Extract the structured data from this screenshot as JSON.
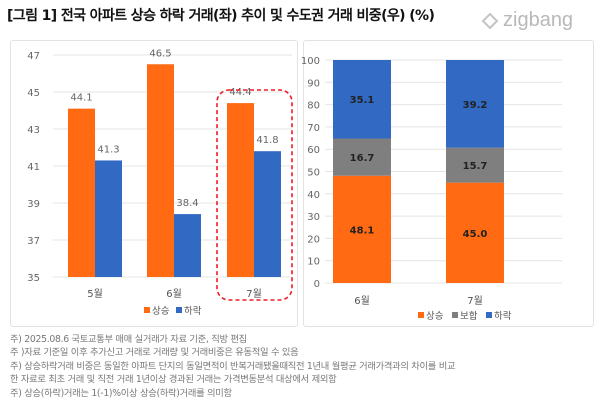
{
  "title": "[그림 1] 전국 아파트 상승 하락 거래(좌) 추이 및 수도권 거래 비중(우) (%)",
  "logo": "zigbang",
  "colors": {
    "up": "#ff6a13",
    "flat": "#7f7f7f",
    "down": "#3169c3",
    "highlight": "#ee1c25"
  },
  "chart_data": [
    {
      "type": "bar",
      "categories": [
        "5월",
        "6월",
        "7월"
      ],
      "series": [
        {
          "name": "상승",
          "values": [
            44.1,
            46.5,
            44.4
          ]
        },
        {
          "name": "하락",
          "values": [
            41.3,
            38.4,
            41.8
          ]
        }
      ],
      "ylim": [
        35,
        47
      ],
      "yticks": [
        35,
        37,
        39,
        41,
        43,
        45,
        47
      ],
      "grid": true,
      "legend": "bottom",
      "highlighted_category": "7월"
    },
    {
      "type": "bar",
      "stacked": true,
      "categories": [
        "6월",
        "7월"
      ],
      "series": [
        {
          "name": "상승",
          "values": [
            48.1,
            45.0
          ]
        },
        {
          "name": "보합",
          "values": [
            16.7,
            15.7
          ]
        },
        {
          "name": "하락",
          "values": [
            35.1,
            39.2
          ]
        }
      ],
      "ylim": [
        0,
        100
      ],
      "yticks": [
        0,
        10,
        20,
        30,
        40,
        50,
        60,
        70,
        80,
        90,
        100
      ],
      "grid": true,
      "legend": "bottom"
    }
  ],
  "notes": [
    "주) 2025.08.6 국토교통부 매매 실거래가 자료 기준, 직방 편집",
    "주 )자료 기준일 이후 추가신고 거래로 거래량 및 거래비중은 유동적일 수 있음",
    "주) 상승하락거래 비중은 동일한 아파트 단지의 동일면적이 반복거래됐을때직전 1년내 월평균 거래가격과의 차이를 비교",
    "한 자료로 최초 거래 및 직전 거래 1년이상 경과된 거래는 가격변동분석 대상에서 제외함",
    "주) 상승(하락)거래는 1(-1)%이상 상승(하락)거래를 의미함"
  ]
}
